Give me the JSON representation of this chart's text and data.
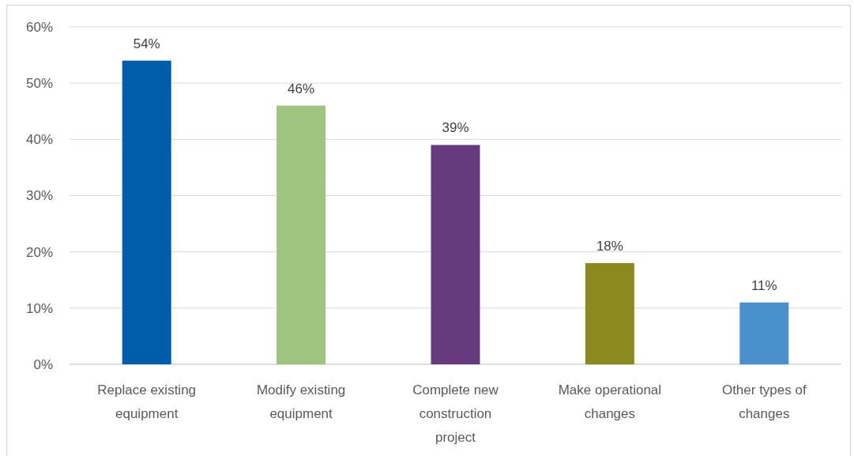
{
  "chart_data": {
    "type": "bar",
    "categories": [
      "Replace existing equipment",
      "Modify existing equipment",
      "Complete new construction project",
      "Make operational changes",
      "Other types of changes"
    ],
    "values": [
      54,
      46,
      39,
      18,
      11
    ],
    "colors": [
      "#005daa",
      "#9fc480",
      "#673a7e",
      "#8a8a1e",
      "#4a90cd"
    ],
    "value_labels": [
      "54%",
      "46%",
      "39%",
      "18%",
      "11%"
    ],
    "ylim": [
      0,
      60
    ],
    "yticks": [
      {
        "value": 0,
        "label": "0%"
      },
      {
        "value": 10,
        "label": "10%"
      },
      {
        "value": 20,
        "label": "20%"
      },
      {
        "value": 30,
        "label": "30%"
      },
      {
        "value": 40,
        "label": "40%"
      },
      {
        "value": 50,
        "label": "50%"
      },
      {
        "value": 60,
        "label": "60%"
      }
    ],
    "grid": "y"
  }
}
